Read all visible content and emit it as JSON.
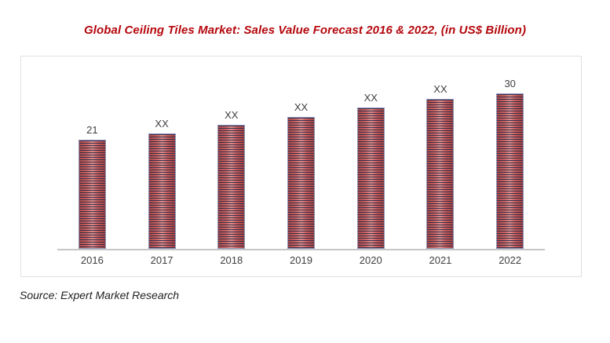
{
  "title": {
    "text": "Global Ceiling Tiles Market: Sales Value Forecast 2016 & 2022, (in US$ Billion)",
    "color": "#B5070D"
  },
  "source": {
    "text": "Source: Expert Market Research"
  },
  "chart_data": {
    "type": "bar",
    "title": "Global Ceiling Tiles Market: Sales Value Forecast 2016 & 2022, (in US$ Billion)",
    "categories": [
      "2016",
      "2017",
      "2018",
      "2019",
      "2020",
      "2021",
      "2022"
    ],
    "value_labels": [
      "21",
      "XX",
      "XX",
      "XX",
      "XX",
      "XX",
      "30"
    ],
    "values": [
      21,
      22.2,
      23.9,
      25.4,
      27.3,
      29,
      30
    ],
    "known_values": {
      "2016": 21,
      "2022": 30
    },
    "unit": "US$ Billion",
    "xlabel": "",
    "ylabel": "",
    "ylim": [
      0,
      34
    ],
    "grid": false,
    "legend": false,
    "bar_fill_color": "#C0504D",
    "bar_stripe_color": "#2A284C",
    "bar_border_color": "#9094B8",
    "axis_line_color": "#C6C6C6",
    "label_color": "#404040"
  }
}
